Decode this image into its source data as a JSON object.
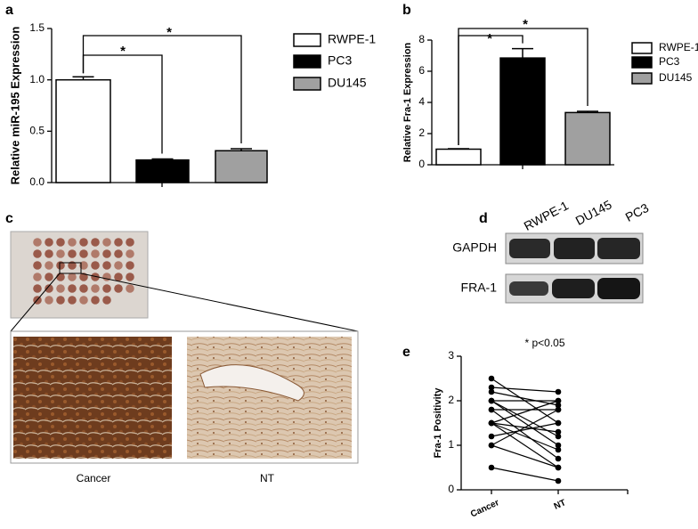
{
  "chart_data": [
    {
      "type": "bar",
      "ylabel": "Relative miR-195 Expression",
      "series": [
        {
          "name": "RWPE-1",
          "color": "#ffffff",
          "values": [
            1.0
          ],
          "errors": [
            0.03
          ]
        },
        {
          "name": "PC3",
          "color": "#000000",
          "values": [
            0.22
          ],
          "errors": [
            0.01
          ]
        },
        {
          "name": "DU145",
          "color": "#a0a0a0",
          "values": [
            0.31
          ],
          "errors": [
            0.02
          ]
        }
      ],
      "ylim": [
        0,
        1.5
      ],
      "yticks": [
        {
          "value": 0,
          "label": "0.0"
        },
        0.5,
        {
          "value": 1,
          "label": "1.0"
        },
        1.5
      ],
      "annotations": [
        "*",
        "*"
      ],
      "legend": "right"
    },
    {
      "type": "bar",
      "ylabel": "Relative Fra-1 Expression",
      "series": [
        {
          "name": "RWPE-1",
          "color": "#ffffff",
          "values": [
            1.0
          ],
          "errors": [
            0.03
          ]
        },
        {
          "name": "PC3",
          "color": "#000000",
          "values": [
            6.85
          ],
          "errors": [
            0.6
          ]
        },
        {
          "name": "DU145",
          "color": "#a0a0a0",
          "values": [
            3.35
          ],
          "errors": [
            0.08
          ]
        }
      ],
      "ylim": [
        0,
        8
      ],
      "yticks": [
        0,
        2,
        4,
        6,
        8
      ],
      "annotations": [
        "*",
        "*"
      ],
      "legend": "right"
    },
    {
      "type": "paired",
      "ylabel": "Fra-1 Positivity",
      "categories": [
        "Cancer",
        "NT"
      ],
      "pairs": [
        [
          2.5,
          1.5
        ],
        [
          2.3,
          2.2
        ],
        [
          2.2,
          1.9
        ],
        [
          2.0,
          2.0
        ],
        [
          2.0,
          1.0
        ],
        [
          1.8,
          1.8
        ],
        [
          1.8,
          0.7
        ],
        [
          1.5,
          2.0
        ],
        [
          1.5,
          1.3
        ],
        [
          1.5,
          0.9
        ],
        [
          1.2,
          1.5
        ],
        [
          1.0,
          1.8
        ],
        [
          1.0,
          0.5
        ],
        [
          0.5,
          0.2
        ],
        [
          2.0,
          1.2
        ],
        [
          1.5,
          0.5
        ]
      ],
      "ylim": [
        0,
        3
      ],
      "yticks": [
        0,
        1,
        2,
        3
      ],
      "annotations": [
        "* p<0.05"
      ],
      "color": "#000000"
    }
  ],
  "figure": {
    "panel_labels": [
      "a",
      "b",
      "c",
      "d",
      "e"
    ],
    "tissue": {
      "labels": [
        "Cancer",
        "NT"
      ]
    },
    "blot": {
      "lanes": [
        "RWPE-1",
        "DU145",
        "PC3"
      ],
      "rows": [
        "GAPDH",
        "FRA-1"
      ]
    }
  }
}
